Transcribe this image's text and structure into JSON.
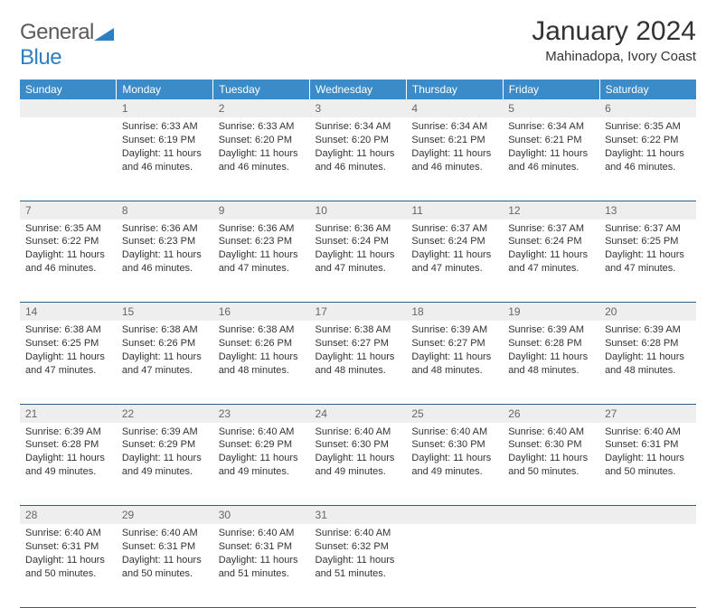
{
  "logo": {
    "word1": "General",
    "word2": "Blue"
  },
  "title": "January 2024",
  "location": "Mahinadopa, Ivory Coast",
  "colors": {
    "header_bg": "#3b8bc9",
    "header_text": "#ffffff",
    "daynum_bg": "#eeeeee",
    "daynum_text": "#666666",
    "row_border": "#2d5f8a",
    "body_text": "#333333",
    "logo_gray": "#5a5a5a",
    "logo_blue": "#2d7fc1"
  },
  "typography": {
    "title_fontsize": 30,
    "location_fontsize": 15,
    "dayheader_fontsize": 12,
    "daynum_fontsize": 12,
    "cell_fontsize": 11
  },
  "day_headers": [
    "Sunday",
    "Monday",
    "Tuesday",
    "Wednesday",
    "Thursday",
    "Friday",
    "Saturday"
  ],
  "weeks": [
    [
      null,
      {
        "n": "1",
        "sunrise": "6:33 AM",
        "sunset": "6:19 PM",
        "daylight": "11 hours and 46 minutes."
      },
      {
        "n": "2",
        "sunrise": "6:33 AM",
        "sunset": "6:20 PM",
        "daylight": "11 hours and 46 minutes."
      },
      {
        "n": "3",
        "sunrise": "6:34 AM",
        "sunset": "6:20 PM",
        "daylight": "11 hours and 46 minutes."
      },
      {
        "n": "4",
        "sunrise": "6:34 AM",
        "sunset": "6:21 PM",
        "daylight": "11 hours and 46 minutes."
      },
      {
        "n": "5",
        "sunrise": "6:34 AM",
        "sunset": "6:21 PM",
        "daylight": "11 hours and 46 minutes."
      },
      {
        "n": "6",
        "sunrise": "6:35 AM",
        "sunset": "6:22 PM",
        "daylight": "11 hours and 46 minutes."
      }
    ],
    [
      {
        "n": "7",
        "sunrise": "6:35 AM",
        "sunset": "6:22 PM",
        "daylight": "11 hours and 46 minutes."
      },
      {
        "n": "8",
        "sunrise": "6:36 AM",
        "sunset": "6:23 PM",
        "daylight": "11 hours and 46 minutes."
      },
      {
        "n": "9",
        "sunrise": "6:36 AM",
        "sunset": "6:23 PM",
        "daylight": "11 hours and 47 minutes."
      },
      {
        "n": "10",
        "sunrise": "6:36 AM",
        "sunset": "6:24 PM",
        "daylight": "11 hours and 47 minutes."
      },
      {
        "n": "11",
        "sunrise": "6:37 AM",
        "sunset": "6:24 PM",
        "daylight": "11 hours and 47 minutes."
      },
      {
        "n": "12",
        "sunrise": "6:37 AM",
        "sunset": "6:24 PM",
        "daylight": "11 hours and 47 minutes."
      },
      {
        "n": "13",
        "sunrise": "6:37 AM",
        "sunset": "6:25 PM",
        "daylight": "11 hours and 47 minutes."
      }
    ],
    [
      {
        "n": "14",
        "sunrise": "6:38 AM",
        "sunset": "6:25 PM",
        "daylight": "11 hours and 47 minutes."
      },
      {
        "n": "15",
        "sunrise": "6:38 AM",
        "sunset": "6:26 PM",
        "daylight": "11 hours and 47 minutes."
      },
      {
        "n": "16",
        "sunrise": "6:38 AM",
        "sunset": "6:26 PM",
        "daylight": "11 hours and 48 minutes."
      },
      {
        "n": "17",
        "sunrise": "6:38 AM",
        "sunset": "6:27 PM",
        "daylight": "11 hours and 48 minutes."
      },
      {
        "n": "18",
        "sunrise": "6:39 AM",
        "sunset": "6:27 PM",
        "daylight": "11 hours and 48 minutes."
      },
      {
        "n": "19",
        "sunrise": "6:39 AM",
        "sunset": "6:28 PM",
        "daylight": "11 hours and 48 minutes."
      },
      {
        "n": "20",
        "sunrise": "6:39 AM",
        "sunset": "6:28 PM",
        "daylight": "11 hours and 48 minutes."
      }
    ],
    [
      {
        "n": "21",
        "sunrise": "6:39 AM",
        "sunset": "6:28 PM",
        "daylight": "11 hours and 49 minutes."
      },
      {
        "n": "22",
        "sunrise": "6:39 AM",
        "sunset": "6:29 PM",
        "daylight": "11 hours and 49 minutes."
      },
      {
        "n": "23",
        "sunrise": "6:40 AM",
        "sunset": "6:29 PM",
        "daylight": "11 hours and 49 minutes."
      },
      {
        "n": "24",
        "sunrise": "6:40 AM",
        "sunset": "6:30 PM",
        "daylight": "11 hours and 49 minutes."
      },
      {
        "n": "25",
        "sunrise": "6:40 AM",
        "sunset": "6:30 PM",
        "daylight": "11 hours and 49 minutes."
      },
      {
        "n": "26",
        "sunrise": "6:40 AM",
        "sunset": "6:30 PM",
        "daylight": "11 hours and 50 minutes."
      },
      {
        "n": "27",
        "sunrise": "6:40 AM",
        "sunset": "6:31 PM",
        "daylight": "11 hours and 50 minutes."
      }
    ],
    [
      {
        "n": "28",
        "sunrise": "6:40 AM",
        "sunset": "6:31 PM",
        "daylight": "11 hours and 50 minutes."
      },
      {
        "n": "29",
        "sunrise": "6:40 AM",
        "sunset": "6:31 PM",
        "daylight": "11 hours and 50 minutes."
      },
      {
        "n": "30",
        "sunrise": "6:40 AM",
        "sunset": "6:31 PM",
        "daylight": "11 hours and 51 minutes."
      },
      {
        "n": "31",
        "sunrise": "6:40 AM",
        "sunset": "6:32 PM",
        "daylight": "11 hours and 51 minutes."
      },
      null,
      null,
      null
    ]
  ],
  "labels": {
    "sunrise": "Sunrise:",
    "sunset": "Sunset:",
    "daylight": "Daylight:"
  }
}
